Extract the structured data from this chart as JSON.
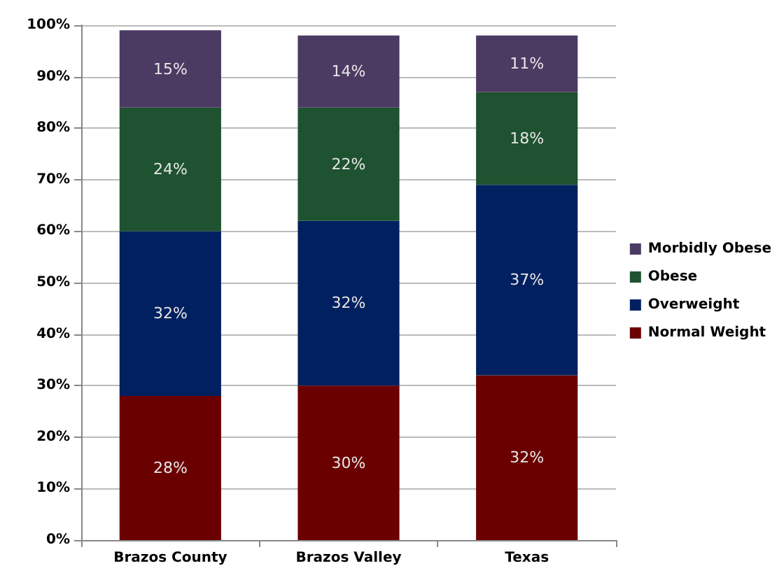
{
  "chart_data": {
    "type": "bar",
    "stacked": true,
    "categories": [
      "Brazos County",
      "Brazos Valley",
      "Texas"
    ],
    "series": [
      {
        "name": "Normal Weight",
        "color": "#6b0000",
        "values": [
          28,
          30,
          32
        ],
        "value_labels": [
          "28%",
          "30%",
          "32%"
        ]
      },
      {
        "name": "Overweight",
        "color": "#002060",
        "values": [
          32,
          32,
          37
        ],
        "value_labels": [
          "32%",
          "32%",
          "37%"
        ]
      },
      {
        "name": "Obese",
        "color": "#1e5230",
        "values": [
          24,
          22,
          18
        ],
        "value_labels": [
          "24%",
          "22%",
          "18%"
        ]
      },
      {
        "name": "Morbidly Obese",
        "color": "#4b3a62",
        "values": [
          15,
          14,
          11
        ],
        "value_labels": [
          "15%",
          "14%",
          "11%"
        ]
      }
    ],
    "ylim": [
      0,
      100
    ],
    "yticks": [
      {
        "value": 0,
        "label": "0%"
      },
      {
        "value": 10,
        "label": "10%"
      },
      {
        "value": 20,
        "label": "20%"
      },
      {
        "value": 30,
        "label": "30%"
      },
      {
        "value": 40,
        "label": "40%"
      },
      {
        "value": 50,
        "label": "50%"
      },
      {
        "value": 60,
        "label": "60%"
      },
      {
        "value": 70,
        "label": "70%"
      },
      {
        "value": 80,
        "label": "80%"
      },
      {
        "value": 90,
        "label": "90%"
      },
      {
        "value": 100,
        "label": "100%"
      }
    ],
    "grid": true,
    "legend": "right"
  }
}
